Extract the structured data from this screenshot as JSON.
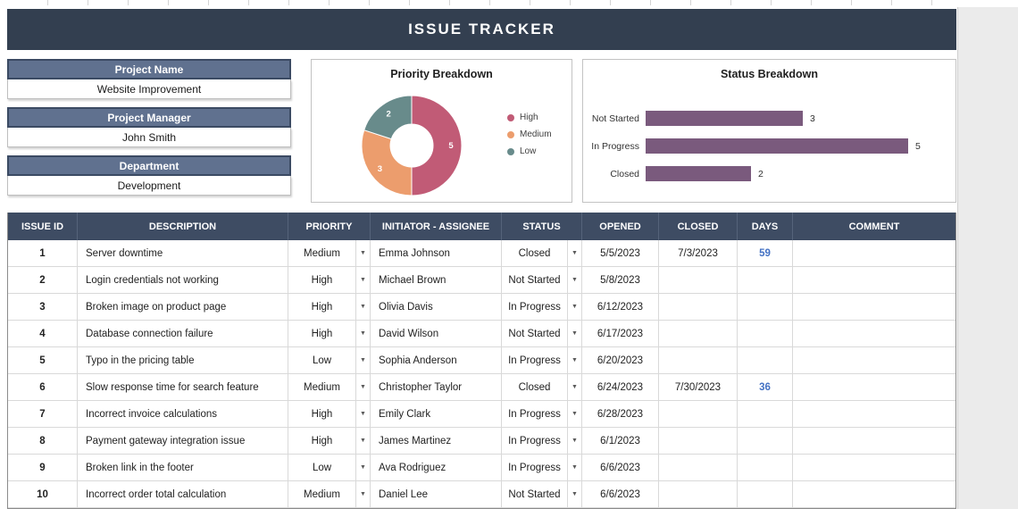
{
  "app": {
    "title": "ISSUE TRACKER"
  },
  "colors": {
    "title_bar": "#333f50",
    "info_header": "#60718f",
    "table_header": "#3e4c63",
    "days_text": "#4472c4",
    "bar_color": "#7a5a7d",
    "donut_colors": [
      "#c15b76",
      "#ec9d6d",
      "#688b8b"
    ]
  },
  "project_info": {
    "fields": [
      {
        "label": "Project Name",
        "value": "Website Improvement"
      },
      {
        "label": "Project Manager",
        "value": "John Smith"
      },
      {
        "label": "Department",
        "value": "Development"
      }
    ]
  },
  "chart_data": [
    {
      "type": "pie",
      "donut": true,
      "title": "Priority Breakdown",
      "labels": [
        "High",
        "Medium",
        "Low"
      ],
      "values": [
        5,
        3,
        2
      ],
      "colors": [
        "#c15b76",
        "#ec9d6d",
        "#688b8b"
      ],
      "legend_position": "right",
      "data_labels": [
        "5",
        "3",
        "2"
      ]
    },
    {
      "type": "bar",
      "orientation": "horizontal",
      "title": "Status Breakdown",
      "categories": [
        "Not Started",
        "In Progress",
        "Closed"
      ],
      "values": [
        3,
        5,
        2
      ],
      "color": "#7a5a7d",
      "xlim": [
        0,
        5
      ],
      "grid": false,
      "legend_position": "none"
    }
  ],
  "table": {
    "headers": [
      "ISSUE ID",
      "DESCRIPTION",
      "PRIORITY",
      "INITIATOR - ASSIGNEE",
      "STATUS",
      "OPENED",
      "CLOSED",
      "DAYS",
      "COMMENT"
    ],
    "rows": [
      {
        "id": "1",
        "description": "Server downtime",
        "priority": "Medium",
        "assignee": "Emma Johnson",
        "status": "Closed",
        "opened": "5/5/2023",
        "closed": "7/3/2023",
        "days": "59",
        "comment": ""
      },
      {
        "id": "2",
        "description": "Login credentials not working",
        "priority": "High",
        "assignee": "Michael Brown",
        "status": "Not Started",
        "opened": "5/8/2023",
        "closed": "",
        "days": "",
        "comment": ""
      },
      {
        "id": "3",
        "description": "Broken image on product page",
        "priority": "High",
        "assignee": "Olivia Davis",
        "status": "In Progress",
        "opened": "6/12/2023",
        "closed": "",
        "days": "",
        "comment": ""
      },
      {
        "id": "4",
        "description": "Database connection failure",
        "priority": "High",
        "assignee": "David Wilson",
        "status": "Not Started",
        "opened": "6/17/2023",
        "closed": "",
        "days": "",
        "comment": ""
      },
      {
        "id": "5",
        "description": "Typo in the pricing table",
        "priority": "Low",
        "assignee": "Sophia Anderson",
        "status": "In Progress",
        "opened": "6/20/2023",
        "closed": "",
        "days": "",
        "comment": ""
      },
      {
        "id": "6",
        "description": "Slow response time for search feature",
        "priority": "Medium",
        "assignee": "Christopher Taylor",
        "status": "Closed",
        "opened": "6/24/2023",
        "closed": "7/30/2023",
        "days": "36",
        "comment": ""
      },
      {
        "id": "7",
        "description": "Incorrect invoice calculations",
        "priority": "High",
        "assignee": "Emily Clark",
        "status": "In Progress",
        "opened": "6/28/2023",
        "closed": "",
        "days": "",
        "comment": ""
      },
      {
        "id": "8",
        "description": "Payment gateway integration issue",
        "priority": "High",
        "assignee": "James Martinez",
        "status": "In Progress",
        "opened": "6/1/2023",
        "closed": "",
        "days": "",
        "comment": ""
      },
      {
        "id": "9",
        "description": "Broken link in the footer",
        "priority": "Low",
        "assignee": "Ava Rodriguez",
        "status": "In Progress",
        "opened": "6/6/2023",
        "closed": "",
        "days": "",
        "comment": ""
      },
      {
        "id": "10",
        "description": "Incorrect order total calculation",
        "priority": "Medium",
        "assignee": "Daniel Lee",
        "status": "Not Started",
        "opened": "6/6/2023",
        "closed": "",
        "days": "",
        "comment": ""
      }
    ]
  }
}
